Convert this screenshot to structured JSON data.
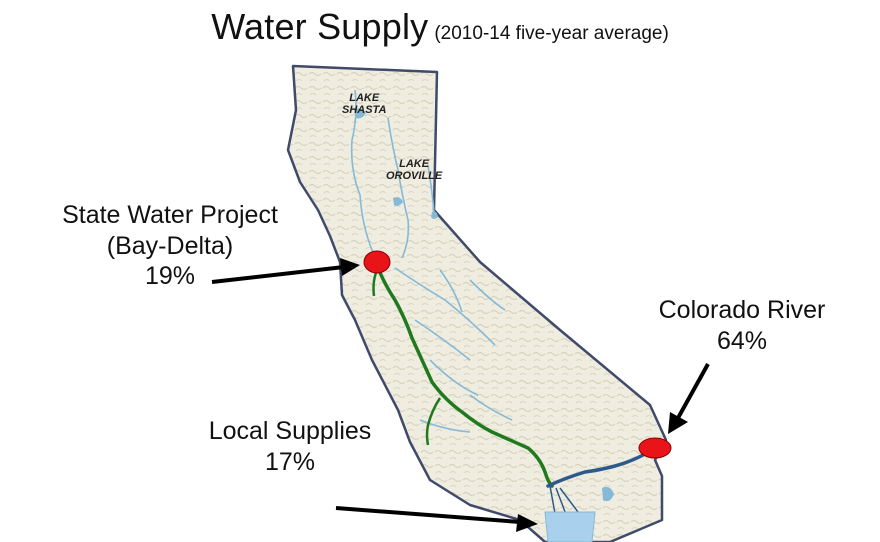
{
  "title": {
    "main": "Water Supply",
    "sub": "(2010-14 five-year average)"
  },
  "sources": [
    {
      "name_line1": "State Water Project",
      "name_line2": "(Bay-Delta)",
      "share": "19%"
    },
    {
      "name_line1": "Colorado River",
      "share": "64%"
    },
    {
      "name_line1": "Local Supplies",
      "share": "17%"
    }
  ],
  "lakes": [
    {
      "line1": "LAKE",
      "line2": "SHASTA"
    },
    {
      "line1": "LAKE",
      "line2": "OROVILLE"
    }
  ],
  "colors": {
    "land": "#efece0",
    "border": "#404a6a",
    "rivers": "#86b9d6",
    "aqueduct_green": "#1f7a1f",
    "aqueduct_blue": "#2d5a8c",
    "marker_red": "#e8141a",
    "water_light": "#a9d0ec"
  }
}
